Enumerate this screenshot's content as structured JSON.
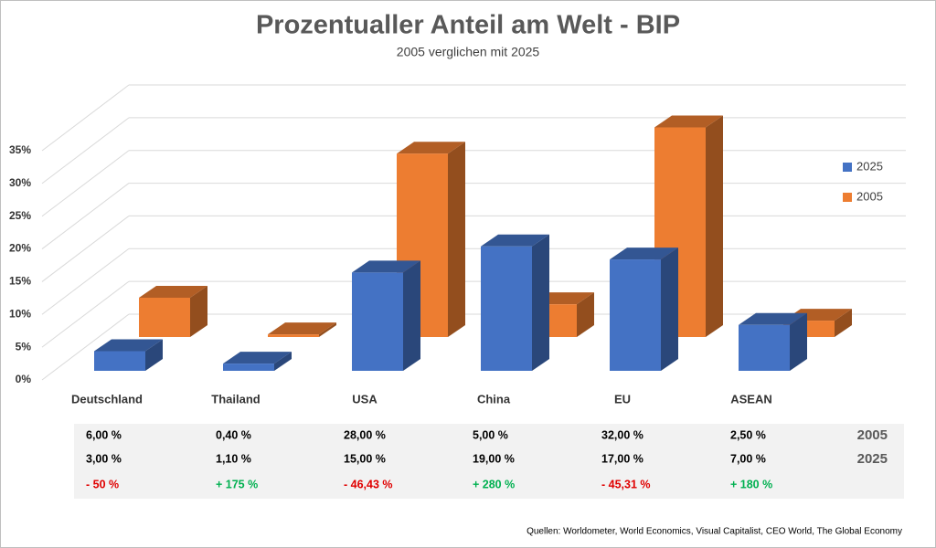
{
  "chart_data": {
    "type": "bar3d",
    "title": "Prozentualler Anteil am Welt - BIP",
    "subtitle": "2005 verglichen mit 2025",
    "categories": [
      "Deutschland",
      "Thailand",
      "USA",
      "China",
      "EU",
      "ASEAN"
    ],
    "series": [
      {
        "name": "2025",
        "color": "#4472c4",
        "values": [
          3,
          1.1,
          15,
          19,
          17,
          7
        ],
        "value_labels": [
          "3,00 %",
          "1,10 %",
          "15,00 %",
          "19,00 %",
          "17,00 %",
          "7,00 %"
        ]
      },
      {
        "name": "2005",
        "color": "#ed7d31",
        "values": [
          6,
          0.4,
          28,
          5,
          32,
          2.5
        ],
        "value_labels": [
          "6,00 %",
          "0,40 %",
          "28,00 %",
          "5,00 %",
          "32,00 %",
          "2,50 %"
        ]
      }
    ],
    "change": {
      "values": [
        -50,
        175,
        -46.43,
        280,
        -45.31,
        180
      ],
      "value_labels": [
        "- 50 %",
        "+ 175 %",
        "- 46,43 %",
        "+ 280 %",
        "- 45,31 %",
        "+ 180 %"
      ],
      "colors": {
        "negative": "#e00000",
        "positive": "#00b050"
      }
    },
    "ylim": [
      0,
      35
    ],
    "yticks": [
      {
        "value": 0,
        "label": "0%"
      },
      {
        "value": 5,
        "label": "5%"
      },
      {
        "value": 10,
        "label": "10%"
      },
      {
        "value": 15,
        "label": "15%"
      },
      {
        "value": 20,
        "label": "20%"
      },
      {
        "value": 25,
        "label": "25%"
      },
      {
        "value": 30,
        "label": "30%"
      },
      {
        "value": 35,
        "label": "35%"
      }
    ],
    "grid": true,
    "legend": "right",
    "source": "Quellen: Worldometer, World Economics, Visual Capitalist, CEO World, The Global Economy"
  }
}
